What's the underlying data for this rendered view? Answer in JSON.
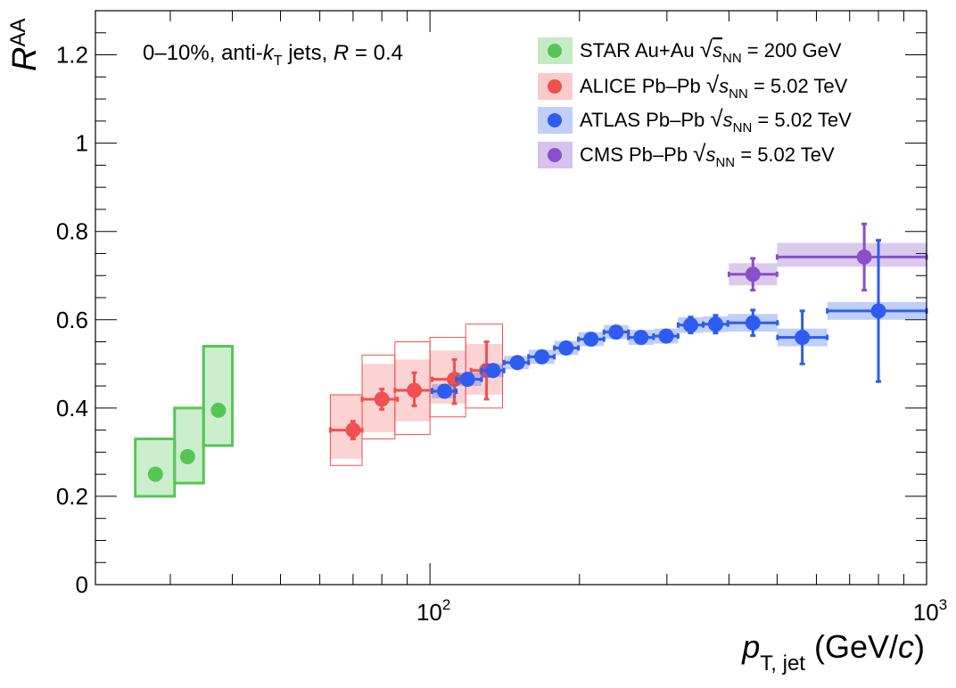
{
  "chart_data": {
    "type": "scatter",
    "xscale": "log",
    "xlim": [
      21.2,
      1000
    ],
    "ylim": [
      0,
      1.3
    ],
    "xlabel": {
      "main": "p",
      "sub": "T, jet",
      "unit": " (GeV/",
      "unit_it": "c",
      "unit_end": ")"
    },
    "ylabel": {
      "main": "R",
      "sub": "AA"
    },
    "annotation": {
      "a": "0–10%, anti-",
      "k": "k",
      "ksub": "T",
      "b": " jets, ",
      "r": "R",
      "c": " = 0.4"
    },
    "yticks": [
      {
        "v": 0,
        "label": "0"
      },
      {
        "v": 0.2,
        "label": "0.2"
      },
      {
        "v": 0.4,
        "label": "0.4"
      },
      {
        "v": 0.6,
        "label": "0.6"
      },
      {
        "v": 0.8,
        "label": "0.8"
      },
      {
        "v": 1.0,
        "label": "1"
      },
      {
        "v": 1.2,
        "label": "1.2"
      }
    ],
    "xticks": [
      {
        "v": 100,
        "base": "10",
        "exp": "2"
      },
      {
        "v": 1000,
        "base": "10",
        "exp": "3"
      }
    ],
    "series": [
      {
        "name": "STAR",
        "legend": {
          "pre": "STAR Au+Au ",
          "s": "s",
          "nn": "NN",
          "post": " = 200 GeV"
        },
        "color": "#55c655",
        "boxFill": "rgba(85,198,85,0.3)",
        "boxStroke": "#55c655",
        "legendFill": "rgba(85,198,85,0.35)",
        "points": [
          {
            "x": 28,
            "y": 0.25,
            "xlo": 25.5,
            "xhi": 30.6,
            "ylo": 0.2,
            "yhi": 0.33
          },
          {
            "x": 32.5,
            "y": 0.29,
            "xlo": 30.6,
            "xhi": 35.0,
            "ylo": 0.23,
            "yhi": 0.4
          },
          {
            "x": 37.5,
            "y": 0.395,
            "xlo": 35.0,
            "xhi": 40.0,
            "ylo": 0.315,
            "yhi": 0.54
          }
        ]
      },
      {
        "name": "ALICE",
        "legend": {
          "pre": "ALICE Pb–Pb ",
          "s": "s",
          "nn": "NN",
          "post": " = 5.02 TeV"
        },
        "color": "#f05050",
        "boxFill": "rgba(240,80,80,0.25)",
        "boxStroke": "#f05050",
        "legendFill": "rgba(240,80,80,0.3)",
        "points": [
          {
            "x": 70,
            "y": 0.35,
            "xlo": 63,
            "xhi": 73,
            "ylo": 0.33,
            "yhi": 0.37,
            "sysLo": 0.285,
            "sysHi": 0.43,
            "corLo": 0.27,
            "corHi": 0.43,
            "corXlo": 63,
            "corXhi": 73
          },
          {
            "x": 80,
            "y": 0.42,
            "xlo": 73,
            "xhi": 86,
            "ylo": 0.397,
            "yhi": 0.443,
            "sysLo": 0.345,
            "sysHi": 0.5,
            "corLo": 0.33,
            "corHi": 0.52,
            "corXlo": 73,
            "corXhi": 85
          },
          {
            "x": 93,
            "y": 0.44,
            "xlo": 85,
            "xhi": 101,
            "ylo": 0.405,
            "yhi": 0.48,
            "sysLo": 0.37,
            "sysHi": 0.51,
            "corLo": 0.34,
            "corHi": 0.55,
            "corXlo": 85,
            "corXhi": 100
          },
          {
            "x": 112,
            "y": 0.465,
            "xlo": 101,
            "xhi": 121,
            "ylo": 0.41,
            "yhi": 0.51,
            "sysLo": 0.41,
            "sysHi": 0.53,
            "corLo": 0.38,
            "corHi": 0.56,
            "corXlo": 100,
            "corXhi": 118
          },
          {
            "x": 130,
            "y": 0.485,
            "xlo": 121,
            "xhi": 136,
            "ylo": 0.42,
            "yhi": 0.55,
            "sysLo": 0.43,
            "sysHi": 0.545,
            "corLo": 0.4,
            "corHi": 0.59,
            "corXlo": 118,
            "corXhi": 140
          }
        ]
      },
      {
        "name": "ATLAS",
        "legend": {
          "pre": "ATLAS Pb–Pb ",
          "s": "s",
          "nn": "NN",
          "post": " = 5.02 TeV"
        },
        "color": "#2e5cf0",
        "boxFill": "rgba(46,92,240,0.3)",
        "boxStroke": "none",
        "legendFill": "rgba(46,92,240,0.3)",
        "points": [
          {
            "x": 107,
            "y": 0.438,
            "xlo": 101,
            "xhi": 113,
            "ylo": 0.425,
            "yhi": 0.45,
            "sysLo": 0.422,
            "sysHi": 0.454
          },
          {
            "x": 119,
            "y": 0.465,
            "xlo": 113,
            "xhi": 127,
            "ylo": 0.452,
            "yhi": 0.478,
            "sysLo": 0.45,
            "sysHi": 0.48
          },
          {
            "x": 134,
            "y": 0.485,
            "xlo": 127,
            "xhi": 141,
            "ylo": 0.473,
            "yhi": 0.497,
            "sysLo": 0.47,
            "sysHi": 0.5
          },
          {
            "x": 150,
            "y": 0.503,
            "xlo": 141,
            "xhi": 158,
            "ylo": 0.492,
            "yhi": 0.514,
            "sysLo": 0.488,
            "sysHi": 0.518
          },
          {
            "x": 168,
            "y": 0.516,
            "xlo": 158,
            "xhi": 178,
            "ylo": 0.505,
            "yhi": 0.527,
            "sysLo": 0.5,
            "sysHi": 0.532
          },
          {
            "x": 188,
            "y": 0.536,
            "xlo": 178,
            "xhi": 199,
            "ylo": 0.525,
            "yhi": 0.547,
            "sysLo": 0.52,
            "sysHi": 0.552
          },
          {
            "x": 211,
            "y": 0.556,
            "xlo": 199,
            "xhi": 224,
            "ylo": 0.545,
            "yhi": 0.567,
            "sysLo": 0.54,
            "sysHi": 0.572
          },
          {
            "x": 237,
            "y": 0.572,
            "xlo": 224,
            "xhi": 251,
            "ylo": 0.561,
            "yhi": 0.583,
            "sysLo": 0.556,
            "sysHi": 0.588
          },
          {
            "x": 266,
            "y": 0.56,
            "xlo": 251,
            "xhi": 282,
            "ylo": 0.549,
            "yhi": 0.571,
            "sysLo": 0.543,
            "sysHi": 0.577
          },
          {
            "x": 299,
            "y": 0.563,
            "xlo": 282,
            "xhi": 316,
            "ylo": 0.552,
            "yhi": 0.574,
            "sysLo": 0.546,
            "sysHi": 0.58
          },
          {
            "x": 335,
            "y": 0.588,
            "xlo": 316,
            "xhi": 355,
            "ylo": 0.57,
            "yhi": 0.606,
            "sysLo": 0.57,
            "sysHi": 0.606
          },
          {
            "x": 376,
            "y": 0.59,
            "xlo": 355,
            "xhi": 398,
            "ylo": 0.57,
            "yhi": 0.61,
            "sysLo": 0.572,
            "sysHi": 0.608
          },
          {
            "x": 447,
            "y": 0.593,
            "xlo": 398,
            "xhi": 501,
            "ylo": 0.564,
            "yhi": 0.622,
            "sysLo": 0.573,
            "sysHi": 0.613
          },
          {
            "x": 562,
            "y": 0.56,
            "xlo": 501,
            "xhi": 631,
            "ylo": 0.5,
            "yhi": 0.62,
            "sysLo": 0.54,
            "sysHi": 0.58
          },
          {
            "x": 800,
            "y": 0.62,
            "xlo": 631,
            "xhi": 1000,
            "ylo": 0.46,
            "yhi": 0.78,
            "sysLo": 0.6,
            "sysHi": 0.64
          }
        ]
      },
      {
        "name": "CMS",
        "legend": {
          "pre": "CMS Pb–Pb ",
          "s": "s",
          "nn": "NN",
          "post": " = 5.02 TeV"
        },
        "color": "#8a4fc8",
        "boxFill": "rgba(138,79,200,0.3)",
        "boxStroke": "none",
        "legendFill": "rgba(138,79,200,0.35)",
        "points": [
          {
            "x": 447,
            "y": 0.703,
            "xlo": 400,
            "xhi": 500,
            "ylo": 0.667,
            "yhi": 0.739,
            "sysLo": 0.678,
            "sysHi": 0.728
          },
          {
            "x": 749,
            "y": 0.742,
            "xlo": 500,
            "xhi": 1000,
            "ylo": 0.667,
            "yhi": 0.817,
            "sysLo": 0.72,
            "sysHi": 0.774
          }
        ]
      }
    ]
  }
}
